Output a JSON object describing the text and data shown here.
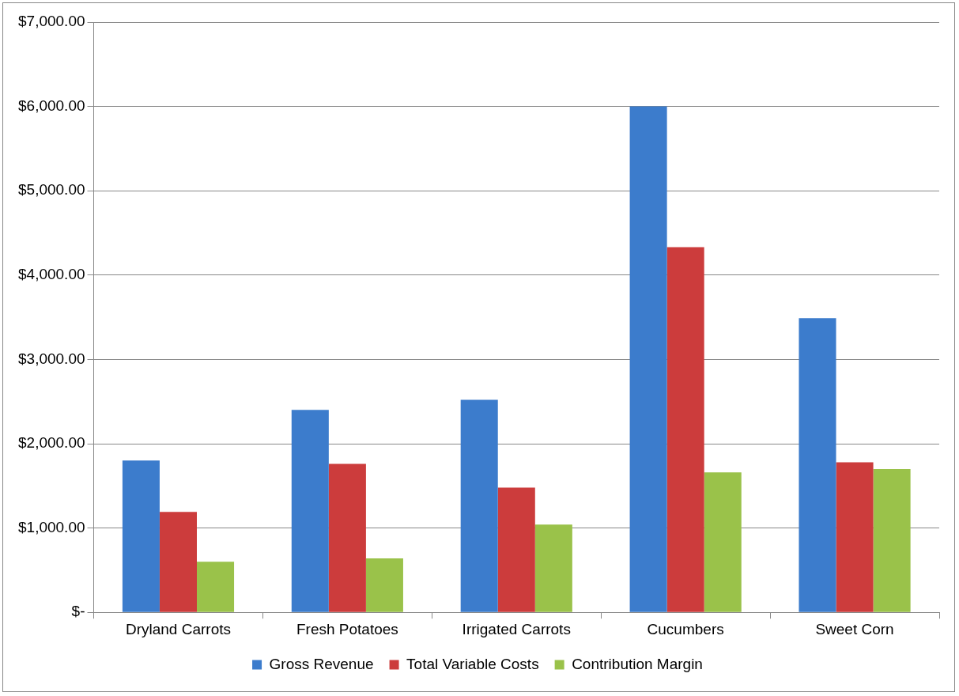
{
  "chart_data": {
    "type": "bar",
    "categories": [
      "Dryland Carrots",
      "Fresh Potatoes",
      "Irrigated Carrots",
      "Cucumbers",
      "Sweet Corn"
    ],
    "series": [
      {
        "name": "Gross Revenue",
        "color": "#3c7ccc",
        "values": [
          1800,
          2400,
          2520,
          6000,
          3490
        ]
      },
      {
        "name": "Total Variable Costs",
        "color": "#cc3c3c",
        "values": [
          1190,
          1760,
          1480,
          4330,
          1780
        ]
      },
      {
        "name": "Contribution Margin",
        "color": "#9ac24a",
        "values": [
          600,
          640,
          1040,
          1660,
          1700
        ]
      }
    ],
    "ylim": [
      0,
      7000
    ],
    "yticks": [
      {
        "value": 0,
        "label": "$-"
      },
      {
        "value": 1000,
        "label": "$1,000.00"
      },
      {
        "value": 2000,
        "label": "$2,000.00"
      },
      {
        "value": 3000,
        "label": "$3,000.00"
      },
      {
        "value": 4000,
        "label": "$4,000.00"
      },
      {
        "value": 5000,
        "label": "$5,000.00"
      },
      {
        "value": 6000,
        "label": "$6,000.00"
      },
      {
        "value": 7000,
        "label": "$7,000.00"
      }
    ],
    "grid": "y",
    "legend": "bottom"
  }
}
